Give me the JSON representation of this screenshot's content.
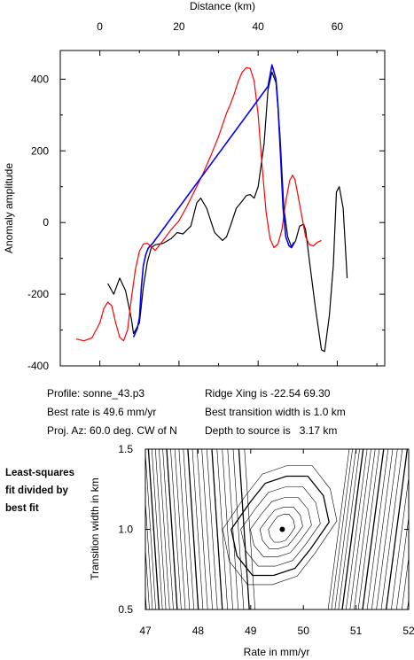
{
  "chart_data": [
    {
      "type": "line",
      "xlabel": "Distance (km)",
      "ylabel": "Anomaly amplitude",
      "xlim": [
        -10,
        72
      ],
      "ylim": [
        -400,
        480
      ],
      "x_ticks": [
        0,
        20,
        40,
        60
      ],
      "y_ticks": [
        -400,
        -200,
        0,
        200,
        400
      ],
      "grid": false,
      "series": [
        {
          "color": "#000000",
          "points": [
            [
              2,
              -170
            ],
            [
              3.5,
              -200
            ],
            [
              5,
              -155
            ],
            [
              6.5,
              -190
            ],
            [
              8,
              -270
            ],
            [
              8.5,
              -310
            ],
            [
              10,
              -280
            ],
            [
              11,
              -180
            ],
            [
              12,
              -110
            ],
            [
              13,
              -70
            ],
            [
              14,
              -62
            ],
            [
              16,
              -58
            ],
            [
              18,
              -45
            ],
            [
              19.5,
              -28
            ],
            [
              21,
              -32
            ],
            [
              23,
              -10
            ],
            [
              24.5,
              55
            ],
            [
              25.5,
              68
            ],
            [
              27,
              40
            ],
            [
              29,
              -28
            ],
            [
              31,
              -50
            ],
            [
              32,
              -40
            ],
            [
              33,
              -10
            ],
            [
              34.5,
              40
            ],
            [
              36,
              60
            ],
            [
              37,
              75
            ],
            [
              38,
              78
            ],
            [
              39,
              68
            ],
            [
              40,
              100
            ],
            [
              41.5,
              220
            ],
            [
              42.5,
              370
            ],
            [
              43.5,
              420
            ],
            [
              44.5,
              390
            ],
            [
              45.5,
              250
            ],
            [
              46.5,
              40
            ],
            [
              47.5,
              -40
            ],
            [
              48.5,
              -70
            ],
            [
              49.5,
              -50
            ],
            [
              50.5,
              -10
            ],
            [
              51.5,
              -5
            ],
            [
              52,
              -20
            ],
            [
              53,
              -110
            ],
            [
              54.5,
              -240
            ],
            [
              56,
              -355
            ],
            [
              56.8,
              -360
            ],
            [
              58,
              -260
            ],
            [
              59,
              -120
            ],
            [
              59.8,
              85
            ],
            [
              60.5,
              100
            ],
            [
              61.5,
              40
            ],
            [
              62.5,
              -155
            ]
          ]
        },
        {
          "color": "#ff0000",
          "points": [
            [
              -6,
              -325
            ],
            [
              -4,
              -330
            ],
            [
              -2,
              -322
            ],
            [
              0,
              -280
            ],
            [
              1,
              -240
            ],
            [
              2,
              -222
            ],
            [
              3,
              -232
            ],
            [
              4,
              -280
            ],
            [
              5,
              -320
            ],
            [
              6,
              -330
            ],
            [
              7,
              -300
            ],
            [
              8,
              -210
            ],
            [
              9,
              -130
            ],
            [
              10,
              -80
            ],
            [
              11,
              -60
            ],
            [
              12,
              -58
            ],
            [
              13,
              -68
            ],
            [
              14,
              -78
            ],
            [
              16,
              -50
            ],
            [
              18,
              -20
            ],
            [
              20,
              5
            ],
            [
              22,
              45
            ],
            [
              24,
              90
            ],
            [
              26,
              135
            ],
            [
              28,
              185
            ],
            [
              30,
              240
            ],
            [
              32,
              305
            ],
            [
              33,
              330
            ],
            [
              34,
              360
            ],
            [
              35,
              395
            ],
            [
              36,
              420
            ],
            [
              37,
              432
            ],
            [
              38,
              430
            ],
            [
              39,
              395
            ],
            [
              40,
              300
            ],
            [
              41,
              160
            ],
            [
              42,
              30
            ],
            [
              43,
              -45
            ],
            [
              44,
              -70
            ],
            [
              45,
              -60
            ],
            [
              46,
              -20
            ],
            [
              47,
              60
            ],
            [
              48,
              118
            ],
            [
              48.7,
              132
            ],
            [
              49.3,
              120
            ],
            [
              50,
              80
            ],
            [
              51,
              20
            ],
            [
              52,
              -40
            ],
            [
              53,
              -62
            ],
            [
              54,
              -65
            ],
            [
              55,
              -55
            ],
            [
              56,
              -50
            ]
          ]
        },
        {
          "color": "#0000ff",
          "points": [
            [
              8.5,
              -320
            ],
            [
              9.5,
              -295
            ],
            [
              10,
              -265
            ],
            [
              10.5,
              -180
            ],
            [
              11,
              -120
            ],
            [
              11.6,
              -90
            ],
            [
              12.2,
              -72
            ],
            [
              12.8,
              -64
            ],
            [
              13.2,
              -60
            ],
            [
              42.5,
              380
            ],
            [
              43.5,
              440
            ],
            [
              44.5,
              400
            ],
            [
              45,
              330
            ],
            [
              45.7,
              180
            ],
            [
              46.3,
              40
            ],
            [
              47,
              -40
            ],
            [
              47.8,
              -65
            ],
            [
              48.4,
              -70
            ],
            [
              49,
              -55
            ]
          ]
        }
      ]
    },
    {
      "type": "contour",
      "xlabel": "Rate in mm/yr",
      "ylabel": "Transition width in km",
      "xlim": [
        47,
        52
      ],
      "ylim": [
        0.5,
        1.5
      ],
      "x_ticks": [
        47,
        48,
        49,
        50,
        51,
        52
      ],
      "y_ticks": [
        0.5,
        1.0,
        1.5
      ],
      "best_fit": {
        "rate": 49.6,
        "width": 1.0
      },
      "title": ""
    }
  ],
  "info": {
    "profile": "Profile: sonne_43.p3",
    "best_rate": "Best rate is 49.6 mm/yr",
    "proj_az": "Proj. Az: 60.0 deg. CW of N",
    "ridge_xing": "Ridge Xing is -22.54 69.30",
    "best_width": "Best transition width is 1.0 km",
    "depth": "Depth to source is   3.17 km"
  },
  "side_note": [
    "Least-squares",
    "fit divided by",
    "best fit"
  ]
}
